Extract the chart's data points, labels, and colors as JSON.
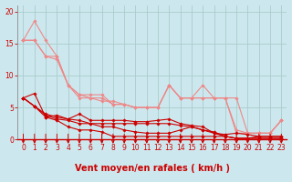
{
  "xlabel": "Vent moyen/en rafales ( km/h )",
  "bg_color": "#cce8ee",
  "grid_color": "#aacccc",
  "xlim": [
    -0.5,
    23.5
  ],
  "ylim": [
    0,
    21
  ],
  "xticks": [
    0,
    1,
    2,
    3,
    4,
    5,
    6,
    7,
    8,
    9,
    10,
    11,
    12,
    13,
    14,
    15,
    16,
    17,
    18,
    19,
    20,
    21,
    22,
    23
  ],
  "yticks": [
    0,
    5,
    10,
    15,
    20
  ],
  "lines_dark": [
    {
      "x": [
        0,
        1,
        2,
        3,
        4,
        5,
        6,
        7,
        8,
        9,
        10,
        11,
        12,
        13,
        14,
        15,
        16,
        17,
        18,
        19,
        20,
        21,
        22,
        23
      ],
      "y": [
        6.5,
        7.2,
        3.5,
        3.8,
        3.2,
        4.0,
        3.0,
        3.0,
        3.0,
        3.0,
        2.8,
        2.8,
        3.0,
        3.2,
        2.5,
        2.2,
        2.0,
        1.0,
        0.8,
        1.0,
        0.8,
        0.5,
        0.5,
        0.5
      ]
    },
    {
      "x": [
        0,
        1,
        2,
        3,
        4,
        5,
        6,
        7,
        8,
        9,
        10,
        11,
        12,
        13,
        14,
        15,
        16,
        17,
        18,
        19,
        20,
        21,
        22,
        23
      ],
      "y": [
        6.5,
        5.2,
        4.0,
        3.5,
        3.2,
        3.0,
        2.5,
        2.5,
        2.5,
        2.5,
        2.5,
        2.5,
        2.5,
        2.5,
        2.2,
        2.0,
        1.5,
        1.2,
        0.5,
        0.2,
        0.2,
        0.2,
        0.2,
        0.2
      ]
    },
    {
      "x": [
        0,
        1,
        2,
        3,
        4,
        5,
        6,
        7,
        8,
        9,
        10,
        11,
        12,
        13,
        14,
        15,
        16,
        17,
        18,
        19,
        20,
        21,
        22,
        23
      ],
      "y": [
        6.5,
        5.2,
        3.8,
        3.2,
        3.0,
        2.5,
        2.5,
        2.0,
        2.0,
        1.5,
        1.2,
        1.0,
        1.0,
        1.0,
        1.5,
        2.0,
        1.5,
        1.0,
        0.5,
        0.2,
        0.2,
        0.5,
        0.5,
        0.5
      ]
    },
    {
      "x": [
        0,
        1,
        2,
        3,
        4,
        5,
        6,
        7,
        8,
        9,
        10,
        11,
        12,
        13,
        14,
        15,
        16,
        17,
        18,
        19,
        20,
        21,
        22,
        23
      ],
      "y": [
        6.5,
        5.2,
        3.5,
        3.0,
        2.0,
        1.5,
        1.5,
        1.2,
        0.5,
        0.5,
        0.5,
        0.5,
        0.5,
        0.5,
        0.5,
        0.5,
        0.5,
        0.5,
        0.5,
        0.2,
        0.2,
        0.2,
        0.2,
        0.2
      ]
    }
  ],
  "lines_light": [
    {
      "x": [
        0,
        1,
        2,
        3,
        4,
        5,
        6,
        7,
        8,
        9,
        10,
        11,
        12,
        13,
        14,
        15,
        16,
        17,
        18,
        19,
        20,
        21,
        22,
        23
      ],
      "y": [
        15.5,
        18.5,
        15.5,
        13.0,
        8.5,
        6.5,
        6.5,
        6.5,
        5.5,
        5.5,
        5.0,
        5.0,
        5.0,
        8.5,
        6.5,
        6.5,
        8.5,
        6.5,
        6.5,
        6.5,
        1.0,
        1.0,
        1.0,
        3.0
      ]
    },
    {
      "x": [
        0,
        1,
        2,
        3,
        4,
        5,
        6,
        7,
        8,
        9,
        10,
        11,
        12,
        13,
        14,
        15,
        16,
        17,
        18,
        19,
        20,
        21,
        22,
        23
      ],
      "y": [
        15.5,
        15.5,
        13.0,
        13.0,
        8.5,
        7.0,
        7.0,
        7.0,
        5.5,
        5.5,
        5.0,
        5.0,
        5.0,
        8.5,
        6.5,
        6.5,
        6.5,
        6.5,
        6.5,
        1.0,
        1.0,
        1.0,
        1.0,
        3.0
      ]
    },
    {
      "x": [
        0,
        1,
        2,
        3,
        4,
        5,
        6,
        7,
        8,
        9,
        10,
        11,
        12,
        13,
        14,
        15,
        16,
        17,
        18,
        19,
        20,
        21,
        22,
        23
      ],
      "y": [
        15.5,
        15.5,
        13.0,
        12.5,
        8.5,
        7.0,
        6.5,
        6.0,
        6.0,
        5.5,
        5.0,
        5.0,
        5.0,
        8.5,
        6.5,
        6.5,
        6.5,
        6.5,
        6.5,
        1.5,
        1.0,
        1.0,
        1.0,
        3.0
      ]
    }
  ],
  "dark_color": "#cc0000",
  "light_color": "#ee8888",
  "marker": "D",
  "markersize": 1.8,
  "linewidth": 0.8,
  "xlabel_color": "#cc0000",
  "xlabel_fontsize": 7,
  "tick_color": "#cc0000",
  "tick_fontsize": 5.5
}
